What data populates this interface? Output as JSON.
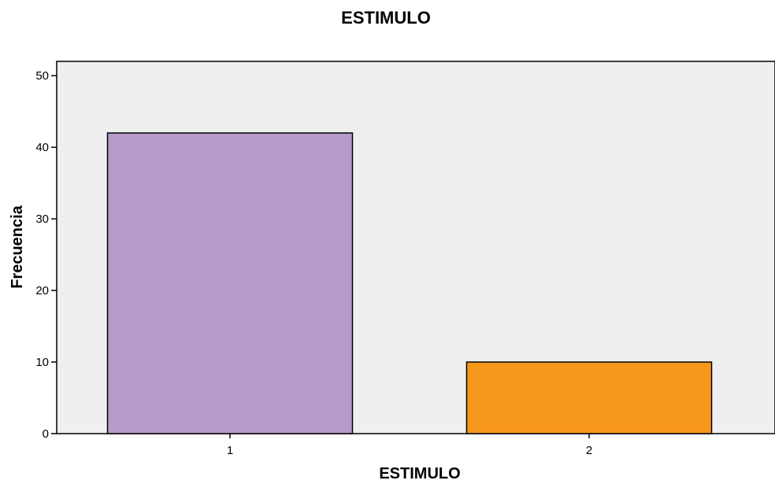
{
  "chart_data": {
    "type": "bar",
    "title": "ESTIMULO",
    "xlabel": "ESTIMULO",
    "ylabel": "Frecuencia",
    "categories": [
      "1",
      "2"
    ],
    "values": [
      42,
      10
    ],
    "ylim": [
      0,
      52
    ],
    "yticks": [
      0,
      10,
      20,
      30,
      40,
      50
    ],
    "colors": [
      "#b79bc9",
      "#f7981d"
    ],
    "plot_background": "#efefef",
    "grid": false,
    "legend": "none"
  }
}
